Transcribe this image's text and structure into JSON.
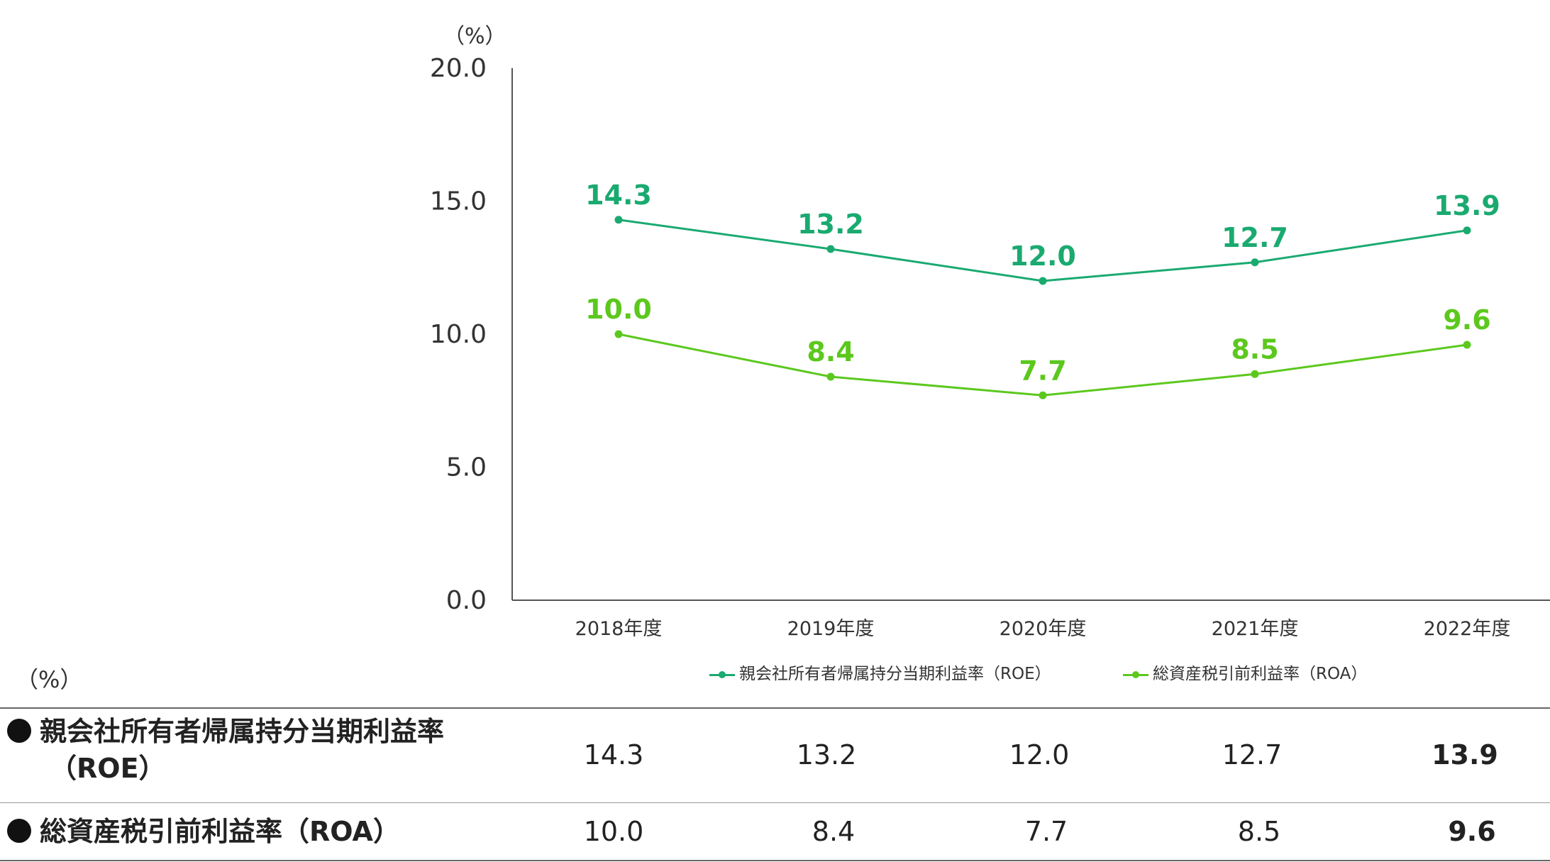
{
  "chart_data": {
    "type": "line",
    "unit_label": "（%）",
    "categories": [
      "2018年度",
      "2019年度",
      "2020年度",
      "2021年度",
      "2022年度"
    ],
    "y_ticks": [
      "0.0",
      "5.0",
      "10.0",
      "15.0",
      "20.0"
    ],
    "ylim": [
      0,
      20
    ],
    "grid": false,
    "legend_position": "bottom",
    "series": [
      {
        "name": "親会社所有者帰属持分当期利益率（ROE）",
        "color": "#1aaa70",
        "values": [
          14.3,
          13.2,
          12.0,
          12.7,
          13.9
        ],
        "labels": [
          "14.3",
          "13.2",
          "12.0",
          "12.7",
          "13.9"
        ]
      },
      {
        "name": "総資産税引前利益率（ROA）",
        "color": "#5cc81e",
        "values": [
          10.0,
          8.4,
          7.7,
          8.5,
          9.6
        ],
        "labels": [
          "10.0",
          "8.4",
          "7.7",
          "8.5",
          "9.6"
        ]
      }
    ]
  },
  "table": {
    "unit_label": "（%）",
    "rows": [
      {
        "label_line1": "親会社所有者帰属持分当期利益率",
        "label_line2": "（ROE）",
        "values": [
          "14.3",
          "13.2",
          "12.0",
          "12.7",
          "13.9"
        ]
      },
      {
        "label_line1": "総資産税引前利益率（ROA）",
        "values": [
          "10.0",
          "8.4",
          "7.7",
          "8.5",
          "9.6"
        ]
      }
    ]
  }
}
